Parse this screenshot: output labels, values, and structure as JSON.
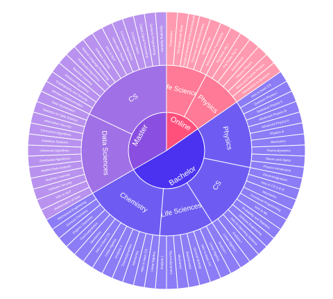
{
  "chart_data": {
    "type": "sunburst",
    "colors": {
      "Online": "#ff4f7b",
      "Online-ring2": "#ff7a96",
      "Online-ring3": "#ff9ab0",
      "Bachelor": "#4a32f0",
      "Bachelor-ring2": "#6e5cf2",
      "Bachelor-ring3": "#8c7cf5",
      "Master": "#8a4fe0",
      "Master-ring2": "#a070e6",
      "Master-ring3": "#b892ee"
    },
    "root": [
      {
        "name": "Online",
        "value": 12,
        "children": [
          {
            "name": "Life Sciences",
            "value": 6,
            "children": [
              {
                "name": "Proteomics",
                "value": 1
              },
              {
                "name": "The Multi-scale Brain",
                "value": 1
              },
              {
                "name": "Biological Modeling of Neural Networks",
                "value": 1
              },
              {
                "name": "Genomics and Bioinformatics",
                "value": 1
              },
              {
                "name": "Epidemiology",
                "value": 1
              },
              {
                "name": "Neuroscience Foundations",
                "value": 1
              }
            ]
          },
          {
            "name": "Physics",
            "value": 6,
            "children": [
              {
                "name": "The Radio Sky I",
                "value": 1
              },
              {
                "name": "The Radio Sky II",
                "value": 1
              },
              {
                "name": "Astrophysics",
                "value": 1
              },
              {
                "name": "Plasma Physics",
                "value": 1
              },
              {
                "name": "Wave and Particle Physics",
                "value": 1
              },
              {
                "name": "Introduction to Quantum",
                "value": 1
              }
            ]
          }
        ]
      },
      {
        "name": "Bachelor",
        "value": 40,
        "children": [
          {
            "name": "Physics",
            "value": 10,
            "children": [
              {
                "name": "Intro to basic CS",
                "value": 1
              },
              {
                "name": "Quantum Physics I",
                "value": 1
              },
              {
                "name": "Statistical Physics II",
                "value": 1
              },
              {
                "name": "Advanced Physics III",
                "value": 1
              },
              {
                "name": "Advanced Physics II",
                "value": 1
              },
              {
                "name": "Physics III",
                "value": 1
              },
              {
                "name": "Mechanics",
                "value": 1
              },
              {
                "name": "Thermodynamics",
                "value": 1
              },
              {
                "name": "Waves and Optics",
                "value": 1
              },
              {
                "name": "Physics Introduction",
                "value": 1
              }
            ]
          },
          {
            "name": "CS",
            "value": 10,
            "children": [
              {
                "name": "Electromagnetism",
                "value": 1
              },
              {
                "name": "Intro to CS (I & II)",
                "value": 1
              },
              {
                "name": "Mechanics",
                "value": 1
              },
              {
                "name": "Functional Programming",
                "value": 1
              },
              {
                "name": "Intro to ML",
                "value": 1
              },
              {
                "name": "Probability and Statistics",
                "value": 1
              },
              {
                "name": "Software Engineering",
                "value": 1
              },
              {
                "name": "Intro to Operating Systems",
                "value": 1
              },
              {
                "name": "Analysis I",
                "value": 1
              },
              {
                "name": "Linear Algebra I",
                "value": 1
              }
            ]
          },
          {
            "name": "Life Sciences",
            "value": 8,
            "children": [
              {
                "name": "Analysis I",
                "value": 1
              },
              {
                "name": "Linear Algebra",
                "value": 1
              },
              {
                "name": "Intro to basic CS",
                "value": 1
              },
              {
                "name": "General Biology",
                "value": 1
              },
              {
                "name": "Biochemistry",
                "value": 1
              },
              {
                "name": "Mechanics",
                "value": 1
              },
              {
                "name": "Thermodynamics",
                "value": 1
              },
              {
                "name": "Analysis 1",
                "value": 1
              }
            ]
          },
          {
            "name": "Chemistry",
            "value": 12,
            "children": [
              {
                "name": "Linear Algebra",
                "value": 1
              },
              {
                "name": "Intro to basic CS",
                "value": 1
              },
              {
                "name": "Mechanics",
                "value": 1
              },
              {
                "name": "Thermodynamics",
                "value": 1
              },
              {
                "name": "Analysis 1",
                "value": 1
              },
              {
                "name": "Linear Algebra",
                "value": 1
              },
              {
                "name": "Intro to basic CS",
                "value": 1
              },
              {
                "name": "Mechanics",
                "value": 1
              },
              {
                "name": "Thermodynamics",
                "value": 1
              },
              {
                "name": "Organic Chemistry",
                "value": 1
              },
              {
                "name": "General Chemistry",
                "value": 1
              },
              {
                "name": "Mechanical Engineering",
                "value": 1
              }
            ]
          }
        ]
      },
      {
        "name": "Master",
        "value": 26,
        "children": [
          {
            "name": "Data Sciences",
            "value": 12,
            "children": [
              {
                "name": "Mathematics of Data",
                "value": 1
              },
              {
                "name": "Intro to NLP",
                "value": 1
              },
              {
                "name": "Software Security",
                "value": 1
              },
              {
                "name": "Machine Learning",
                "value": 1
              },
              {
                "name": "Applied Data Analysis",
                "value": 1
              },
              {
                "name": "Distributed Algorithms",
                "value": 1
              },
              {
                "name": "Advanced Algorithms",
                "value": 1
              },
              {
                "name": "Database Systems",
                "value": 1
              },
              {
                "name": "Concurrent Algorithms",
                "value": 1
              },
              {
                "name": "Information Security",
                "value": 1
              },
              {
                "name": "Statistics for Data Science",
                "value": 1
              },
              {
                "name": "Data Visualization",
                "value": 1
              }
            ]
          },
          {
            "name": "CS",
            "value": 14,
            "children": [
              {
                "name": "Wireless Communication",
                "value": 1
              },
              {
                "name": "Cryptography and Security",
                "value": 1
              },
              {
                "name": "Advanced Algorithms",
                "value": 1
              },
              {
                "name": "Machine Learning",
                "value": 1
              },
              {
                "name": "Distributed Algorithms",
                "value": 1
              },
              {
                "name": "Natural Language Processing",
                "value": 1
              },
              {
                "name": "Software Security",
                "value": 1
              },
              {
                "name": "Intro to NLP",
                "value": 1
              },
              {
                "name": "Information Theory",
                "value": 1
              },
              {
                "name": "Concurrent Algorithms",
                "value": 1
              },
              {
                "name": "Computer Vision",
                "value": 1
              },
              {
                "name": "Digital Signal Processing",
                "value": 1
              },
              {
                "name": "Systems Programming",
                "value": 1
              },
              {
                "name": "Operating Systems",
                "value": 1
              }
            ]
          }
        ]
      }
    ]
  }
}
